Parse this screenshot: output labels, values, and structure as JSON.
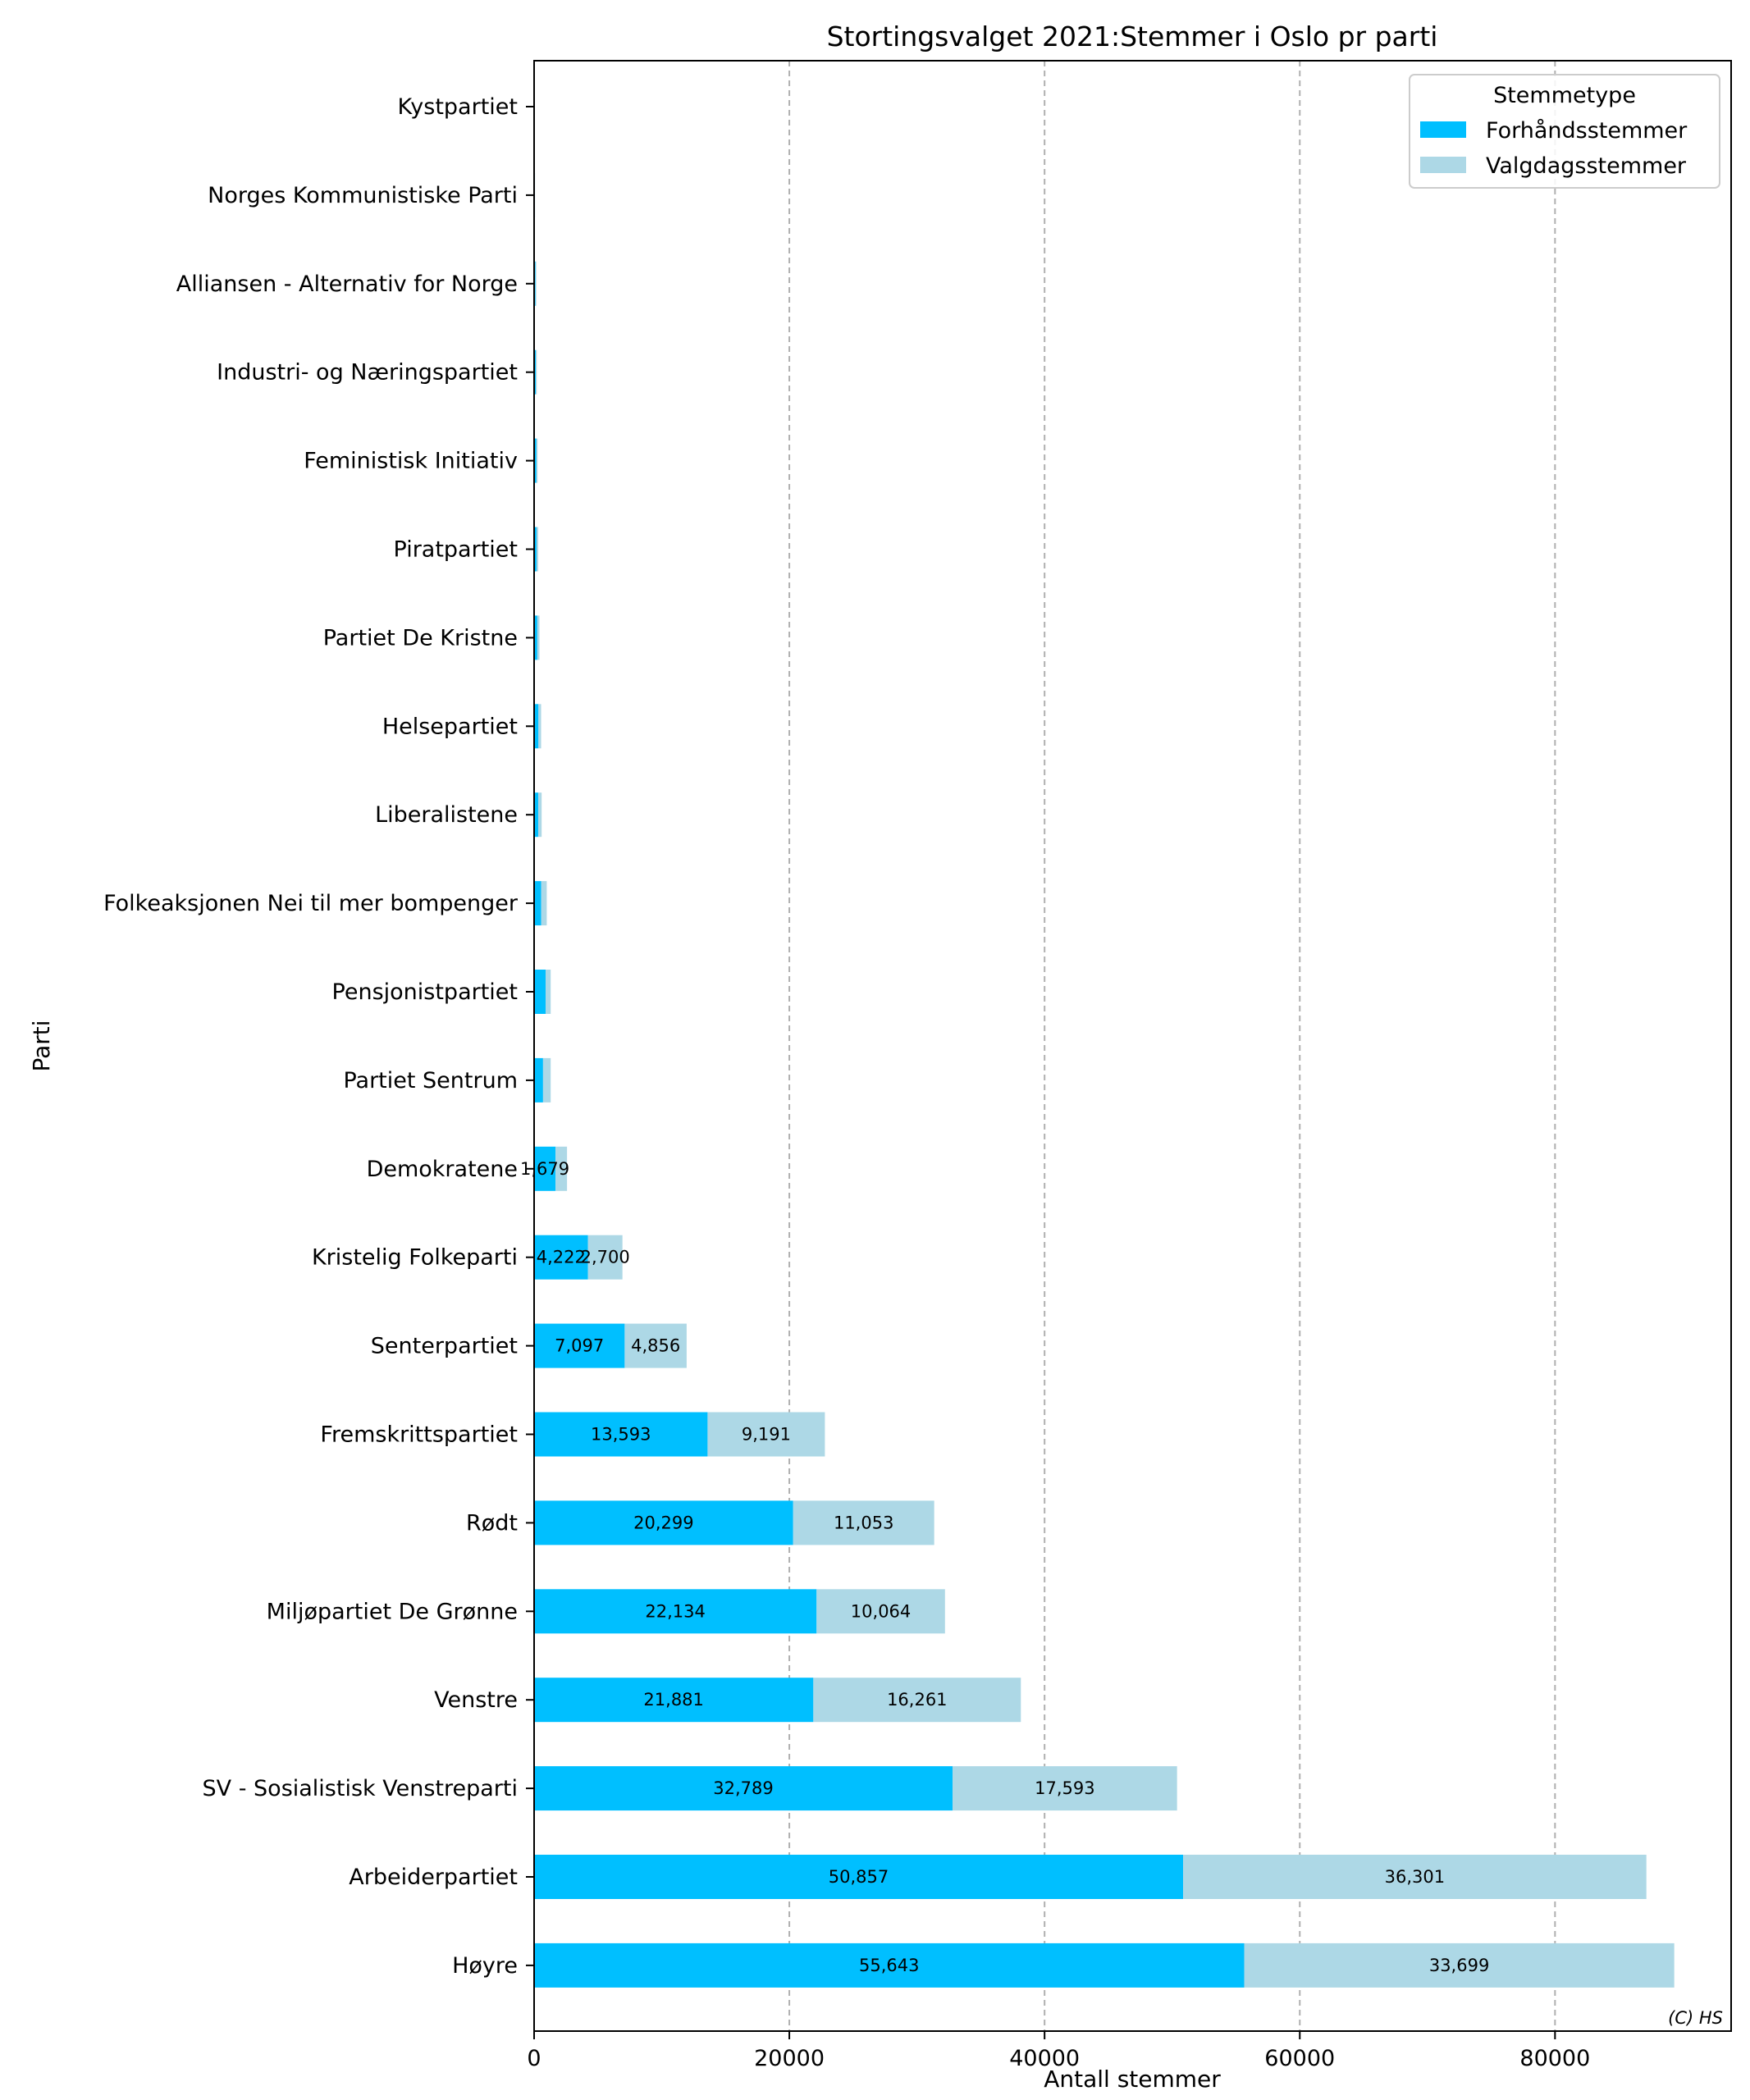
{
  "chart_data": {
    "type": "bar",
    "orientation": "horizontal",
    "stacked": true,
    "title": "Stortingsvalget 2021:Stemmer i Oslo pr parti",
    "xlabel": "Antall stemmer",
    "ylabel": "Parti",
    "xlim": [
      0,
      93800
    ],
    "xticks": [
      "0",
      "20000",
      "40000",
      "60000",
      "80000"
    ],
    "xtick_values": [
      0,
      20000,
      40000,
      60000,
      80000
    ],
    "grid": "vertical dashed",
    "legend": {
      "title": "Stemmetype",
      "placement": "top-right"
    },
    "credit": "(C) HS",
    "categories": [
      "Kystpartiet",
      "Norges Kommunistiske Parti",
      "Alliansen - Alternativ for Norge",
      "Industri- og Næringspartiet",
      "Feministisk Initiativ",
      "Piratpartiet",
      "Partiet De Kristne",
      "Helsepartiet",
      "Liberalistene",
      "Folkeaksjonen Nei til mer bompenger",
      "Pensjonistpartiet",
      "Partiet Sentrum",
      "Demokratene",
      "Kristelig Folkeparti",
      "Senterpartiet",
      "Fremskrittspartiet",
      "Rødt",
      "Miljøpartiet De Grønne",
      "Venstre",
      "SV - Sosialistisk Venstreparti",
      "Arbeiderpartiet",
      "Høyre"
    ],
    "series": [
      {
        "name": "Forhåndsstemmer",
        "color": "#00bfff",
        "values": [
          15,
          40,
          110,
          130,
          180,
          190,
          250,
          340,
          320,
          560,
          900,
          700,
          1679,
          4222,
          7097,
          13593,
          20299,
          22134,
          21881,
          32789,
          50857,
          55643
        ],
        "labels": [
          "",
          "",
          "",
          "",
          "",
          "",
          "",
          "",
          "",
          "",
          "",
          "",
          "1,679",
          "4,222",
          "7,097",
          "13,593",
          "20,299",
          "22,134",
          "21,881",
          "32,789",
          "50,857",
          "55,643"
        ]
      },
      {
        "name": "Valgdagsstemmer",
        "color": "#add8e6",
        "values": [
          10,
          25,
          60,
          80,
          90,
          130,
          170,
          210,
          270,
          430,
          400,
          600,
          900,
          2700,
          4856,
          9191,
          11053,
          10064,
          16261,
          17593,
          36301,
          33699
        ],
        "labels": [
          "",
          "",
          "",
          "",
          "",
          "",
          "",
          "",
          "",
          "",
          "",
          "",
          "",
          "2,700",
          "4,856",
          "9,191",
          "11,053",
          "10,064",
          "16,261",
          "17,593",
          "36,301",
          "33,699"
        ]
      }
    ]
  }
}
